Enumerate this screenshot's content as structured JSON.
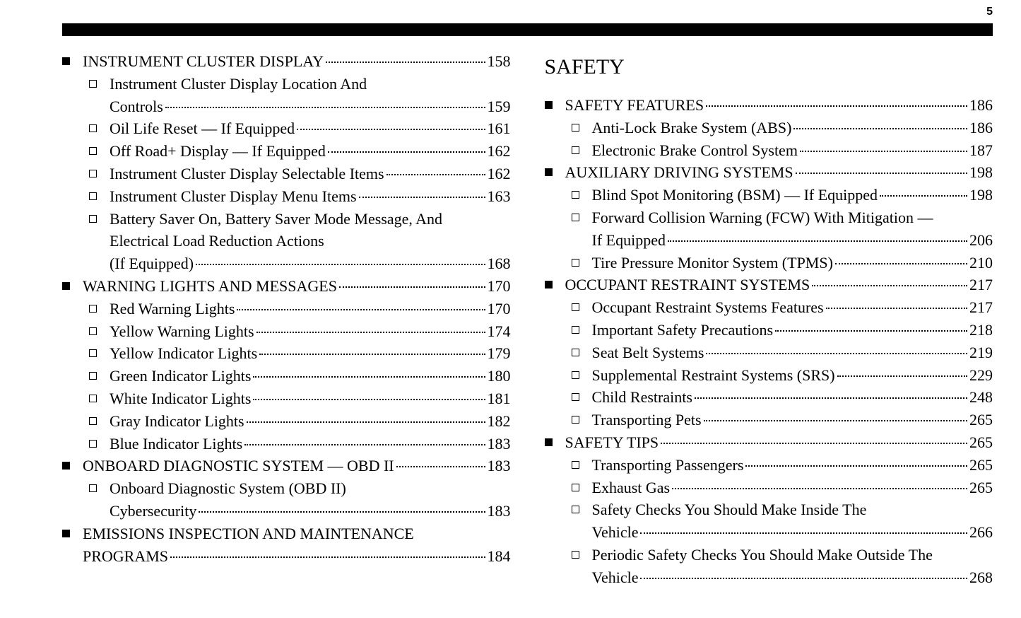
{
  "page_number": "5",
  "font": {
    "body_pt": 22,
    "title_pt": 30,
    "pagenum_pt": 16
  },
  "colors": {
    "text": "#000000",
    "background": "#ffffff",
    "bar": "#000000"
  },
  "left_column": {
    "sections": [
      {
        "title": "INSTRUMENT CLUSTER DISPLAY",
        "page": "158",
        "items": [
          {
            "title": "Instrument Cluster Display Location And",
            "cont": "Controls",
            "page": "159"
          },
          {
            "title": "Oil Life Reset — If Equipped",
            "page": "161"
          },
          {
            "title": "Off Road+ Display — If Equipped",
            "page": "162"
          },
          {
            "title": "Instrument Cluster Display Selectable Items",
            "page": "162"
          },
          {
            "title": "Instrument Cluster Display Menu Items",
            "page": "163"
          },
          {
            "title": "Battery Saver On, Battery Saver Mode Message, And",
            "cont": "Electrical Load Reduction Actions",
            "cont2": "(If Equipped)",
            "page": "168"
          }
        ]
      },
      {
        "title": "WARNING LIGHTS AND MESSAGES",
        "page": "170",
        "items": [
          {
            "title": "Red Warning Lights",
            "page": "170"
          },
          {
            "title": "Yellow Warning Lights",
            "page": "174"
          },
          {
            "title": "Yellow Indicator Lights",
            "page": "179"
          },
          {
            "title": "Green Indicator Lights",
            "page": "180"
          },
          {
            "title": "White Indicator Lights",
            "page": "181"
          },
          {
            "title": "Gray Indicator Lights",
            "page": "182"
          },
          {
            "title": "Blue Indicator Lights",
            "page": "183"
          }
        ]
      },
      {
        "title": "ONBOARD DIAGNOSTIC SYSTEM — OBD II",
        "page": "183",
        "items": [
          {
            "title": "Onboard Diagnostic System (OBD II)",
            "cont": "Cybersecurity",
            "page": "183"
          }
        ]
      },
      {
        "title": "EMISSIONS INSPECTION AND MAINTENANCE",
        "cont": "PROGRAMS",
        "page": "184",
        "items": []
      }
    ]
  },
  "right_column": {
    "chapter": "SAFETY",
    "sections": [
      {
        "title": "SAFETY FEATURES",
        "page": "186",
        "items": [
          {
            "title": "Anti-Lock Brake System (ABS)",
            "page": "186"
          },
          {
            "title": "Electronic Brake Control System",
            "page": "187"
          }
        ]
      },
      {
        "title": "AUXILIARY DRIVING SYSTEMS",
        "page": "198",
        "items": [
          {
            "title": "Blind Spot Monitoring (BSM) — If Equipped",
            "page": "198"
          },
          {
            "title": "Forward Collision Warning (FCW) With Mitigation —",
            "cont": "If Equipped",
            "page": "206"
          },
          {
            "title": "Tire Pressure Monitor System (TPMS)",
            "page": "210"
          }
        ]
      },
      {
        "title": "OCCUPANT RESTRAINT SYSTEMS",
        "page": "217",
        "items": [
          {
            "title": "Occupant Restraint Systems Features",
            "page": "217"
          },
          {
            "title": "Important Safety Precautions",
            "page": "218"
          },
          {
            "title": "Seat Belt Systems",
            "page": "219"
          },
          {
            "title": "Supplemental Restraint Systems (SRS)",
            "page": "229"
          },
          {
            "title": "Child Restraints",
            "page": "248"
          },
          {
            "title": "Transporting Pets",
            "page": "265"
          }
        ]
      },
      {
        "title": "SAFETY TIPS",
        "page": "265",
        "items": [
          {
            "title": "Transporting Passengers",
            "page": "265"
          },
          {
            "title": "Exhaust Gas",
            "page": "265"
          },
          {
            "title": "Safety Checks You Should Make Inside The",
            "cont": "Vehicle",
            "page": "266"
          },
          {
            "title": "Periodic Safety Checks You Should Make Outside The",
            "cont": "Vehicle",
            "page": "268"
          }
        ]
      }
    ]
  }
}
